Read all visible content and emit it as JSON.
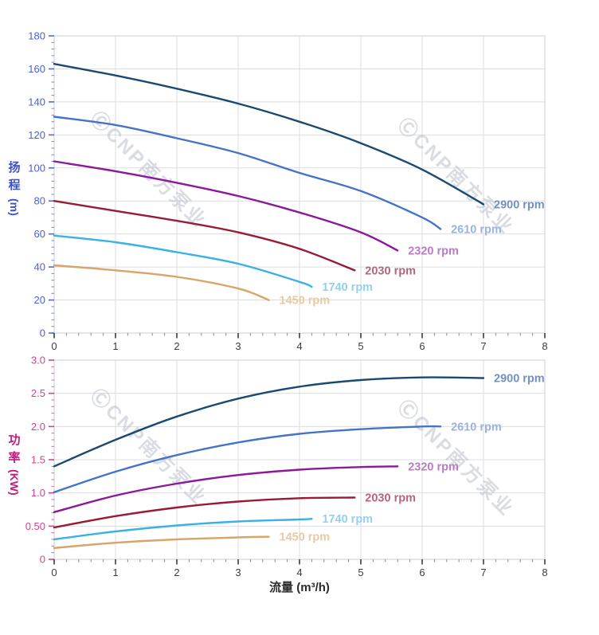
{
  "watermark": {
    "text": "ⒸCNP南方泵业",
    "color": "rgba(178,181,196,0.48)"
  },
  "styles": {
    "grid_color": "#dcdde1",
    "border_color": "#c9cdd3",
    "x_tick_color": "#3c3c3c",
    "x_minor_tick_color": "#8a8a8a",
    "x_label_color": "#3c3c3c",
    "x_title_color": "#2a2a2a"
  },
  "chart_data": [
    {
      "type": "line",
      "title": "",
      "xlabel": "",
      "ylabel": "扬程 (m)",
      "ylabel_chars": [
        "扬",
        "程"
      ],
      "ylabel_unit": "(m)",
      "xlim": [
        0,
        8
      ],
      "ylim": [
        0,
        180
      ],
      "grid": true,
      "x_ticks": [
        0,
        1,
        2,
        3,
        4,
        5,
        6,
        7,
        8
      ],
      "x_tick_labels": [
        "0",
        "1",
        "2",
        "3",
        "4",
        "5",
        "6",
        "7",
        "8"
      ],
      "y_ticks": [
        0,
        20,
        40,
        60,
        80,
        100,
        120,
        140,
        160,
        180
      ],
      "y_tick_labels": [
        "0",
        "20",
        "40",
        "60",
        "80",
        "100",
        "120",
        "140",
        "160",
        "180"
      ],
      "x_minor_step": 0.2,
      "y_minor_step": 4,
      "axis_tick_color": "#5468de",
      "tick_label_color": "#4a60dc",
      "title_color": "#3b50d4",
      "legend_position": "end-of-line labels",
      "series": [
        {
          "name": "2900 rpm",
          "color": "#1a4a72",
          "label_color": "#7590ba",
          "x": [
            0,
            1,
            2,
            3,
            4,
            5,
            6,
            7
          ],
          "y": [
            163,
            156,
            148,
            139,
            128,
            115,
            99,
            78
          ]
        },
        {
          "name": "2610 rpm",
          "color": "#4573c8",
          "label_color": "#98b3de",
          "x": [
            0,
            1,
            2,
            3,
            4,
            5,
            6,
            6.3
          ],
          "y": [
            131,
            126,
            118,
            109,
            97,
            86,
            70,
            63
          ]
        },
        {
          "name": "2320 rpm",
          "color": "#8c189c",
          "label_color": "#b87cc4",
          "x": [
            0,
            1,
            2,
            3,
            4,
            5,
            5.6
          ],
          "y": [
            104,
            98,
            91,
            83,
            73,
            61,
            50
          ]
        },
        {
          "name": "2030 rpm",
          "color": "#9a1b34",
          "label_color": "#b4657c",
          "x": [
            0,
            1,
            2,
            3,
            4,
            4.9
          ],
          "y": [
            80,
            74,
            68,
            61,
            51,
            38
          ]
        },
        {
          "name": "1740 rpm",
          "color": "#3ab1e5",
          "label_color": "#96cff0",
          "x": [
            0,
            1,
            2,
            3,
            4,
            4.2
          ],
          "y": [
            59,
            55,
            49,
            42,
            31,
            28
          ]
        },
        {
          "name": "1450 rpm",
          "color": "#d8a468",
          "label_color": "#e7caa2",
          "x": [
            0,
            1,
            2,
            3,
            3.5
          ],
          "y": [
            41,
            38,
            34,
            27,
            20
          ]
        }
      ]
    },
    {
      "type": "line",
      "title": "",
      "xlabel": "流量 (m³/h)",
      "ylabel": "功率 (KW)",
      "ylabel_chars": [
        "功",
        "率"
      ],
      "ylabel_unit": "(KW)",
      "xlim": [
        0,
        8
      ],
      "ylim": [
        0,
        3
      ],
      "grid": true,
      "x_ticks": [
        0,
        1,
        2,
        3,
        4,
        5,
        6,
        7,
        8
      ],
      "x_tick_labels": [
        "0",
        "1",
        "2",
        "3",
        "4",
        "5",
        "6",
        "7",
        "8"
      ],
      "y_ticks": [
        0,
        0.5,
        1,
        1.5,
        2,
        2.5,
        3
      ],
      "y_tick_labels": [
        "0",
        "0.50",
        "1.0",
        "1.5",
        "2.0",
        "2.5",
        "3.0"
      ],
      "x_minor_step": 0.2,
      "y_minor_step": 0.1,
      "axis_tick_color": "#d2438f",
      "tick_label_color": "#d2438f",
      "title_color": "#c01d7d",
      "legend_position": "end-of-line labels",
      "series": [
        {
          "name": "2900 rpm",
          "color": "#1a4a72",
          "label_color": "#7590ba",
          "x": [
            0,
            1,
            2,
            3,
            4,
            5,
            6,
            7
          ],
          "y": [
            1.4,
            1.8,
            2.15,
            2.42,
            2.6,
            2.7,
            2.74,
            2.73
          ]
        },
        {
          "name": "2610 rpm",
          "color": "#4573c8",
          "label_color": "#98b3de",
          "x": [
            0,
            1,
            2,
            3,
            4,
            5,
            6,
            6.3
          ],
          "y": [
            1.01,
            1.32,
            1.57,
            1.76,
            1.89,
            1.96,
            2.0,
            2.0
          ]
        },
        {
          "name": "2320 rpm",
          "color": "#8c189c",
          "label_color": "#b87cc4",
          "x": [
            0,
            1,
            2,
            3,
            4,
            5,
            5.6
          ],
          "y": [
            0.71,
            0.96,
            1.14,
            1.27,
            1.35,
            1.39,
            1.4
          ]
        },
        {
          "name": "2030 rpm",
          "color": "#9a1b34",
          "label_color": "#b4657c",
          "x": [
            0,
            1,
            2,
            3,
            4,
            4.9
          ],
          "y": [
            0.48,
            0.65,
            0.78,
            0.87,
            0.92,
            0.93
          ]
        },
        {
          "name": "1740 rpm",
          "color": "#3ab1e5",
          "label_color": "#96cff0",
          "x": [
            0,
            1,
            2,
            3,
            4,
            4.2
          ],
          "y": [
            0.3,
            0.42,
            0.51,
            0.57,
            0.6,
            0.61
          ]
        },
        {
          "name": "1450 rpm",
          "color": "#d8a468",
          "label_color": "#e7caa2",
          "x": [
            0,
            1,
            2,
            3,
            3.5
          ],
          "y": [
            0.17,
            0.25,
            0.3,
            0.33,
            0.34
          ]
        }
      ]
    }
  ]
}
